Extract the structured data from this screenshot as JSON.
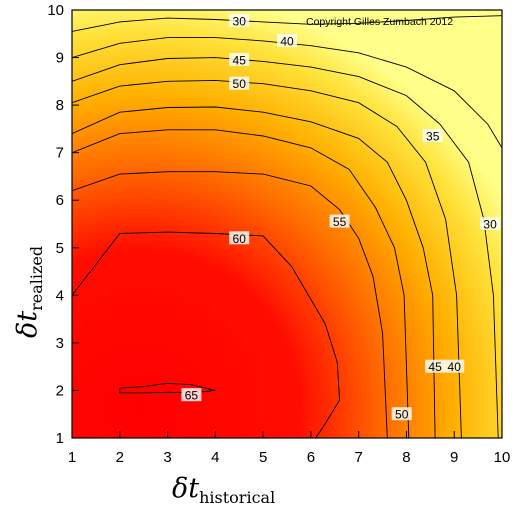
{
  "chart_data": {
    "type": "contour",
    "title": "",
    "copyright": "Copyright Gilles Zumbach 2012",
    "x_axis": {
      "symbol": "δt",
      "subscript": "historical",
      "range": [
        1,
        10
      ],
      "ticks": [
        "1",
        "2",
        "3",
        "4",
        "5",
        "6",
        "7",
        "8",
        "9",
        "10"
      ]
    },
    "y_axis": {
      "symbol": "δt",
      "subscript": "realized",
      "range": [
        1,
        10
      ],
      "ticks": [
        "1",
        "2",
        "3",
        "4",
        "5",
        "6",
        "7",
        "8",
        "9",
        "10"
      ]
    },
    "color_scale": {
      "low": "#ffff66",
      "mid": "#ff9900",
      "high": "#ff0000"
    },
    "levels": [
      {
        "value": 30,
        "label": "30",
        "path": [
          [
            1,
            9.55
          ],
          [
            2,
            9.75
          ],
          [
            3,
            9.83
          ],
          [
            4,
            9.8
          ],
          [
            5,
            9.75
          ],
          [
            6,
            9.7
          ],
          [
            7,
            9.72
          ],
          [
            8,
            9.78
          ],
          [
            9,
            9.85
          ],
          [
            10,
            9.88
          ]
        ]
      },
      {
        "value": 40,
        "label": "40",
        "path": [
          [
            1,
            9.0
          ],
          [
            2,
            9.3
          ],
          [
            3,
            9.42
          ],
          [
            4,
            9.42
          ],
          [
            5,
            9.35
          ],
          [
            6,
            9.25
          ],
          [
            7,
            9.1
          ],
          [
            8,
            8.8
          ],
          [
            9,
            8.3
          ],
          [
            9.7,
            7.6
          ],
          [
            10,
            7.1
          ]
        ]
      },
      {
        "value": 45,
        "label": "45",
        "path": [
          [
            1,
            8.5
          ],
          [
            2,
            8.85
          ],
          [
            3,
            8.98
          ],
          [
            4,
            9.0
          ],
          [
            5,
            8.92
          ],
          [
            6,
            8.8
          ],
          [
            7,
            8.6
          ],
          [
            8,
            8.2
          ],
          [
            8.7,
            7.6
          ]
        ]
      },
      {
        "value": 35,
        "label": "35",
        "path": [
          [
            8.7,
            7.6
          ],
          [
            9.3,
            6.8
          ],
          [
            9.62,
            5.6
          ],
          [
            9.82,
            4.0
          ],
          [
            9.92,
            1.0
          ]
        ]
      },
      {
        "value": 50,
        "label": "50",
        "path": [
          [
            1,
            8.05
          ],
          [
            2,
            8.4
          ],
          [
            3,
            8.5
          ],
          [
            4,
            8.52
          ],
          [
            5,
            8.45
          ],
          [
            6,
            8.3
          ],
          [
            7,
            8.05
          ],
          [
            7.8,
            7.55
          ],
          [
            8.4,
            6.8
          ],
          [
            8.82,
            5.6
          ],
          [
            9.05,
            4.0
          ],
          [
            9.15,
            1.0
          ]
        ]
      },
      {
        "value": 45,
        "label": "45",
        "path": [
          [
            1,
            7.4
          ],
          [
            2,
            7.85
          ],
          [
            3,
            7.95
          ],
          [
            4,
            7.96
          ],
          [
            5,
            7.85
          ],
          [
            6,
            7.65
          ],
          [
            7,
            7.3
          ],
          [
            7.6,
            6.8
          ],
          [
            8.0,
            6.0
          ],
          [
            8.35,
            5.0
          ],
          [
            8.55,
            4.0
          ],
          [
            8.6,
            1.0
          ]
        ]
      },
      {
        "value": 40,
        "label": "40",
        "path": [
          [
            1,
            7.0
          ],
          [
            2,
            7.4
          ],
          [
            3,
            7.48
          ],
          [
            4,
            7.48
          ],
          [
            5,
            7.35
          ],
          [
            6,
            7.1
          ],
          [
            6.8,
            6.65
          ],
          [
            7.35,
            5.85
          ],
          [
            7.75,
            5.0
          ],
          [
            7.95,
            4.0
          ],
          [
            8.05,
            1.0
          ]
        ]
      },
      {
        "value": 30,
        "label": "30",
        "path": [
          [
            1,
            6.2
          ],
          [
            2,
            6.55
          ],
          [
            3,
            6.6
          ],
          [
            4,
            6.6
          ],
          [
            5,
            6.55
          ],
          [
            6,
            6.3
          ],
          [
            6.6,
            5.8
          ],
          [
            7.0,
            5.2
          ],
          [
            7.3,
            4.4
          ],
          [
            7.5,
            3.2
          ],
          [
            7.6,
            1.0
          ]
        ]
      },
      {
        "value": 60,
        "label": "60",
        "path": [
          [
            1,
            4.0
          ],
          [
            2,
            5.3
          ],
          [
            3,
            5.33
          ],
          [
            4,
            5.3
          ],
          [
            5,
            5.25
          ],
          [
            5.6,
            4.6
          ],
          [
            6.3,
            3.4
          ],
          [
            6.55,
            2.6
          ],
          [
            6.6,
            1.8
          ],
          [
            6.3,
            1.3
          ],
          [
            6.1,
            1.0
          ]
        ]
      },
      {
        "value": 55,
        "label": "55",
        "path": []
      },
      {
        "value": 65,
        "label": "65",
        "path": [
          [
            2,
            2.05
          ],
          [
            2.5,
            2.08
          ],
          [
            3,
            2.15
          ],
          [
            3.5,
            2.12
          ],
          [
            4,
            2.0
          ],
          [
            3.5,
            1.95
          ],
          [
            3,
            1.96
          ],
          [
            2.5,
            1.95
          ],
          [
            2,
            1.95
          ],
          [
            2,
            2.05
          ]
        ]
      }
    ],
    "label_positions": [
      {
        "text": "30",
        "x": 4.5,
        "y": 9.77
      },
      {
        "text": "40",
        "x": 5.5,
        "y": 9.35
      },
      {
        "text": "45",
        "x": 4.5,
        "y": 8.95
      },
      {
        "text": "50",
        "x": 4.5,
        "y": 8.45
      },
      {
        "text": "35",
        "x": 8.55,
        "y": 7.35
      },
      {
        "text": "55",
        "x": 6.6,
        "y": 5.55
      },
      {
        "text": "60",
        "x": 4.5,
        "y": 5.2
      },
      {
        "text": "30",
        "x": 9.75,
        "y": 5.5
      },
      {
        "text": "45",
        "x": 8.6,
        "y": 2.5
      },
      {
        "text": "40",
        "x": 9.0,
        "y": 2.5
      },
      {
        "text": "50",
        "x": 7.9,
        "y": 1.5
      },
      {
        "text": "65",
        "x": 3.5,
        "y": 1.9
      }
    ]
  }
}
